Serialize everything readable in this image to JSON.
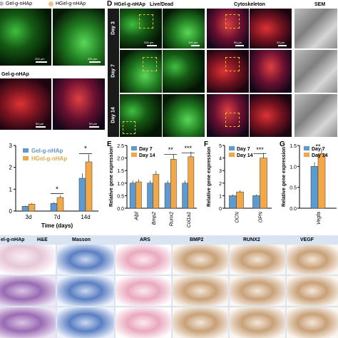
{
  "panels": {
    "A": {
      "tag_gel": "Gel-g-nHAp",
      "tag_hgel": "HGel-g-nHAp",
      "scale1": "200 μm",
      "scale2": "200 μm"
    },
    "C": {
      "title": "Gel-g-nHAp",
      "scale1": "50 μm",
      "scale2": "50 μm"
    },
    "D": {
      "letter": "D",
      "title": "HGel-g-nHAp",
      "live_dead": "Live/Dead",
      "cytoskeleton": "Cytoskeleton",
      "sem": "SEM",
      "days": [
        "Day 3",
        "Day 7",
        "Day 14"
      ],
      "scales": [
        "200 μm",
        "100 μm",
        "50 μm",
        "20 μm"
      ]
    },
    "E": {
      "letter": "E",
      "ylabel": "Relative gene expression"
    },
    "F": {
      "letter": "F",
      "ylabel": "Relative gene expression"
    },
    "G": {
      "letter": "G",
      "ylabel": "Relative gene expression"
    },
    "H": {
      "row_title": "el-g-nHAp",
      "cols": [
        "H&E",
        "Masson",
        "ARS",
        "BMP2",
        "RUNX2",
        "VEGF"
      ]
    }
  },
  "chart_data": [
    {
      "type": "line",
      "series": [
        {
          "name": "Gel-g-nHAp",
          "color": "#5b9bd5",
          "values": [
            0.22,
            0.35,
            1.5
          ]
        },
        {
          "name": "HGel-g-nHAp",
          "color": "#f4a742",
          "values": [
            0.32,
            0.62,
            2.25
          ]
        }
      ],
      "categories": [
        "3d",
        "7d",
        "14d"
      ],
      "xlabel": "Time (days)",
      "yticks": [
        "0",
        "1",
        "2",
        "3"
      ],
      "ylim": [
        0,
        3
      ],
      "significance": [
        "*",
        "*"
      ],
      "legend_position": "top-left"
    },
    {
      "type": "bar",
      "categories": [
        "Alpl",
        "Bmp2",
        "Runx2",
        "Col1a1"
      ],
      "series": [
        {
          "name": "Day 7",
          "color": "#5b9bd5",
          "values": [
            1.0,
            1.0,
            1.0,
            1.0
          ]
        },
        {
          "name": "Day 14",
          "color": "#f4a742",
          "values": [
            1.05,
            1.35,
            1.95,
            2.05
          ]
        }
      ],
      "yticks": [
        "0.0",
        "0.5",
        "1.0",
        "1.5",
        "2.0",
        "2.5"
      ],
      "ylim": [
        0,
        2.5
      ],
      "significance": [
        "**",
        "***"
      ],
      "legend_position": "top-left"
    },
    {
      "type": "bar",
      "categories": [
        "OCN",
        "OPN"
      ],
      "series": [
        {
          "name": "Day 7",
          "color": "#5b9bd5",
          "values": [
            1.0,
            1.0
          ]
        },
        {
          "name": "Day 14",
          "color": "#f4a742",
          "values": [
            1.3,
            4.0
          ]
        }
      ],
      "yticks": [
        "0",
        "1",
        "2",
        "3",
        "4",
        "5"
      ],
      "ylim": [
        0,
        5
      ],
      "significance": [
        "***"
      ],
      "legend_position": "top-left"
    },
    {
      "type": "bar",
      "categories": [
        "Vegfa"
      ],
      "series": [
        {
          "name": "Day 7",
          "color": "#5b9bd5",
          "values": [
            1.0
          ]
        },
        {
          "name": "Day 14",
          "color": "#f4a742",
          "values": [
            1.3
          ]
        }
      ],
      "yticks": [
        "0.0",
        "0.5",
        "1.0",
        "1.5"
      ],
      "ylim": [
        0,
        1.5
      ],
      "significance": [
        "**"
      ],
      "legend_position": "top-right"
    }
  ]
}
